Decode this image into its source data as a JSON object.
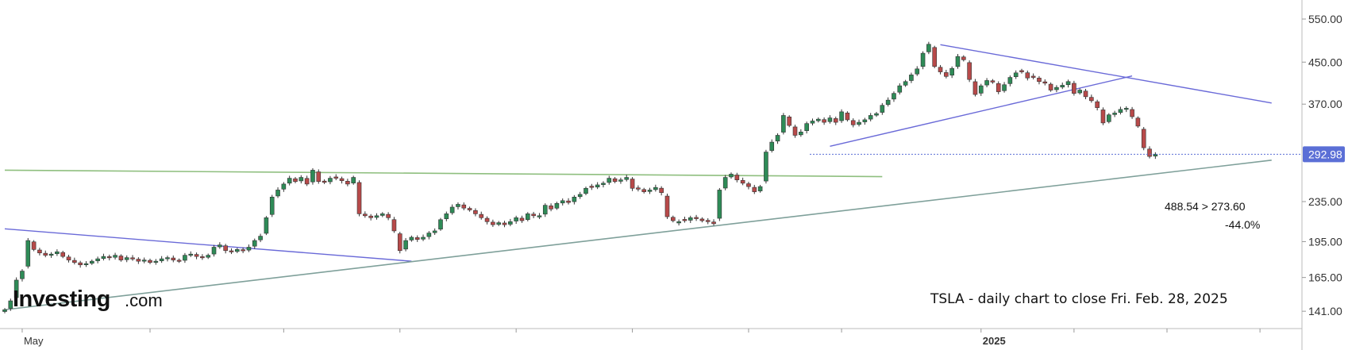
{
  "logo": {
    "main": "Investing",
    "suffix": ".com"
  },
  "caption": "TSLA - daily chart to close Fri. Feb. 28, 2025",
  "annotation": {
    "line1": "488.54 > 273.60",
    "line2": "-44.0%"
  },
  "price_tag": {
    "value": "292.98",
    "color": "#5b6fd6"
  },
  "colors": {
    "up": "#2e8b57",
    "down": "#b84a4a",
    "trend_blue": "#6a6ad8",
    "trend_green": "#8fbf7f",
    "support_line": "#7fa09a"
  },
  "chart_data": {
    "type": "candlestick",
    "yaxis": {
      "ticks": [
        "550.00",
        "450.00",
        "370.00",
        "292.98",
        "235.00",
        "195.00",
        "165.00",
        "141.00"
      ],
      "tick_values": [
        550,
        450,
        370,
        292.98,
        235,
        195,
        165,
        141
      ],
      "scale": "log",
      "range": [
        132,
        590
      ]
    },
    "xaxis": {
      "labels": [
        {
          "text": "May",
          "index": 3
        },
        {
          "text": "2025",
          "index": 168
        }
      ],
      "tick_indices": [
        3,
        25,
        48,
        68,
        88,
        108,
        128,
        144,
        168,
        184,
        200,
        216
      ]
    },
    "closes": [
      142,
      148,
      163,
      170,
      196,
      188,
      185,
      183,
      184,
      186,
      182,
      179,
      177,
      175,
      176,
      178,
      180,
      182,
      181,
      183,
      179,
      181,
      180,
      178,
      179,
      177,
      178,
      180,
      181,
      179,
      178,
      183,
      184,
      182,
      181,
      183,
      190,
      192,
      187,
      186,
      188,
      187,
      190,
      196,
      200,
      218,
      240,
      248,
      255,
      262,
      258,
      263,
      255,
      272,
      258,
      257,
      262,
      262,
      259,
      255,
      263,
      222,
      220,
      218,
      220,
      222,
      218,
      205,
      187,
      196,
      199,
      197,
      199,
      203,
      205,
      216,
      222,
      229,
      232,
      228,
      226,
      222,
      218,
      214,
      211,
      213,
      211,
      214,
      218,
      215,
      222,
      220,
      220,
      231,
      227,
      233,
      236,
      234,
      240,
      243,
      250,
      251,
      254,
      256,
      262,
      258,
      260,
      263,
      250,
      249,
      246,
      248,
      251,
      245,
      219,
      215,
      214,
      215,
      218,
      217,
      215,
      214,
      212,
      248,
      263,
      267,
      260,
      256,
      252,
      246,
      252,
      296,
      310,
      320,
      351,
      335,
      320,
      325,
      338,
      342,
      345,
      340,
      347,
      340,
      357,
      344,
      336,
      340,
      344,
      351,
      354,
      368,
      377,
      389,
      403,
      411,
      424,
      436,
      469,
      489,
      441,
      430,
      421,
      437,
      462,
      455,
      415,
      387,
      403,
      413,
      410,
      392,
      405,
      419,
      428,
      430,
      418,
      419,
      411,
      408,
      395,
      400,
      404,
      411,
      389,
      395,
      383,
      376,
      364,
      339,
      352,
      355,
      361,
      363,
      349,
      334,
      302,
      290,
      293
    ],
    "highlights": {
      "peak": 488.54,
      "low": 273.6,
      "change": "-44.0%"
    },
    "trendlines": [
      {
        "name": "upper descending",
        "from": [
          161,
          488
        ],
        "to": [
          218,
          372
        ]
      },
      {
        "name": "lower ascending",
        "from": [
          142,
          304
        ],
        "to": [
          194,
          422
        ]
      },
      {
        "name": "early descending",
        "from": [
          0,
          207
        ],
        "to": [
          70,
          178
        ]
      },
      {
        "name": "horizontal resistance",
        "from": [
          0,
          272
        ],
        "to": [
          151,
          264
        ]
      },
      {
        "name": "long-term support",
        "from": [
          0,
          142
        ],
        "to": [
          218,
          285
        ]
      }
    ]
  }
}
